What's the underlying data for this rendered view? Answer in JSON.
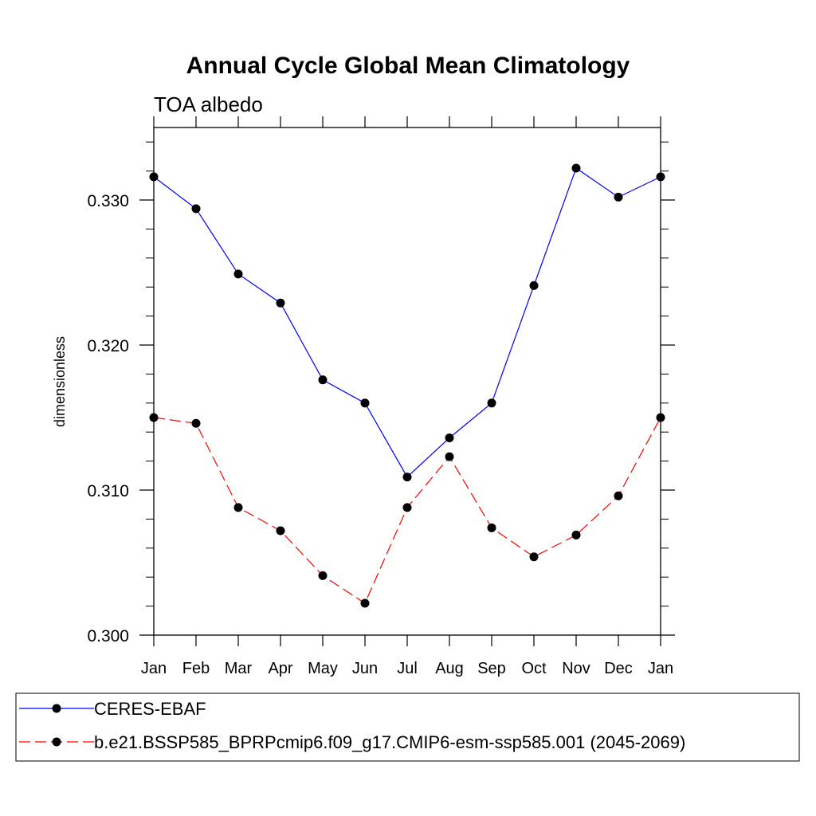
{
  "chart_data": {
    "type": "line",
    "title": "Annual Cycle Global Mean Climatology",
    "subtitle": "TOA albedo",
    "xlabel": "",
    "ylabel": "dimensionless",
    "categories": [
      "Jan",
      "Feb",
      "Mar",
      "Apr",
      "May",
      "Jun",
      "Jul",
      "Aug",
      "Sep",
      "Oct",
      "Nov",
      "Dec",
      "Jan"
    ],
    "ylim": [
      0.3,
      0.335
    ],
    "yticks": [
      "0.300",
      "0.310",
      "0.320",
      "0.330"
    ],
    "ytick_values": [
      0.3,
      0.31,
      0.32,
      0.33
    ],
    "grid": false,
    "legend_position": "bottom",
    "series": [
      {
        "name": "CERES-EBAF",
        "color": "#0000ff",
        "style": "solid",
        "values": [
          0.3316,
          0.3294,
          0.3249,
          0.3229,
          0.3176,
          0.316,
          0.3109,
          0.3136,
          0.316,
          0.3241,
          0.3322,
          0.3302,
          0.3316
        ]
      },
      {
        "name": "b.e21.BSSP585_BPRPcmip6.f09_g17.CMIP6-esm-ssp585.001 (2045-2069)",
        "color": "#ff0000",
        "style": "dashed",
        "values": [
          0.315,
          0.3146,
          0.3088,
          0.3072,
          0.3041,
          0.3022,
          0.3088,
          0.3123,
          0.3074,
          0.3054,
          0.3069,
          0.3096,
          0.315
        ]
      }
    ]
  }
}
